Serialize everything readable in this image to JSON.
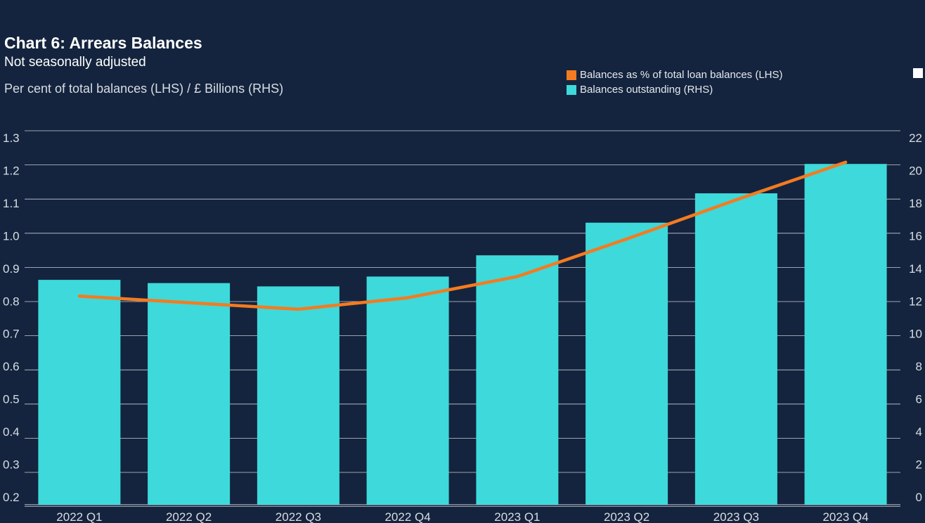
{
  "header": {
    "title": "Chart 6: Arrears Balances",
    "subtitle": "Not seasonally adjusted",
    "units": "Per cent of total balances (LHS) / £ Billions (RHS)"
  },
  "colors": {
    "background": "#14243e",
    "bars": "#3dd9db",
    "line": "#f47b20",
    "grid": "#c8ccd4",
    "text": "#d9dde4"
  },
  "chart_data": {
    "type": "bar",
    "title": "Chart 6: Arrears Balances",
    "subtitle": "Not seasonally adjusted",
    "ylabel": "Per cent of total balances (LHS) / £ Billions (RHS)",
    "categories": [
      "2022 Q1",
      "2022 Q2",
      "2022 Q3",
      "2022 Q4",
      "2023 Q1",
      "2023 Q2",
      "2023 Q3",
      "2023 Q4"
    ],
    "series": [
      {
        "name": "Balances as % of total loan balances (LHS)",
        "type": "line",
        "axis": "left",
        "color": "#f47b20",
        "values": [
          0.815,
          0.795,
          0.775,
          0.81,
          0.875,
          0.99,
          1.11,
          1.225
        ]
      },
      {
        "name": "Balances outstanding (RHS)",
        "type": "bar",
        "axis": "right",
        "color": "#3dd9db",
        "values": [
          13.3,
          13.1,
          12.9,
          13.5,
          14.8,
          16.8,
          18.6,
          20.4
        ]
      }
    ],
    "y_left": {
      "range": [
        0.19,
        1.32
      ],
      "ticks": [
        "0.2",
        "0.3",
        "0.4",
        "0.5",
        "0.6",
        "0.7",
        "0.8",
        "0.9",
        "1.0",
        "1.1",
        "1.2",
        "1.3"
      ],
      "tick_values": [
        0.2,
        0.3,
        0.4,
        0.5,
        0.6,
        0.7,
        0.8,
        0.9,
        1.0,
        1.1,
        1.2,
        1.3
      ]
    },
    "y_right": {
      "range": [
        0,
        22.4
      ],
      "ticks": [
        "0",
        "2",
        "4",
        "6",
        "8",
        "10",
        "12",
        "14",
        "16",
        "18",
        "20",
        "22"
      ],
      "tick_values": [
        0,
        2,
        4,
        6,
        8,
        10,
        12,
        14,
        16,
        18,
        20,
        22
      ]
    },
    "grid": true,
    "legend": "top-right"
  }
}
